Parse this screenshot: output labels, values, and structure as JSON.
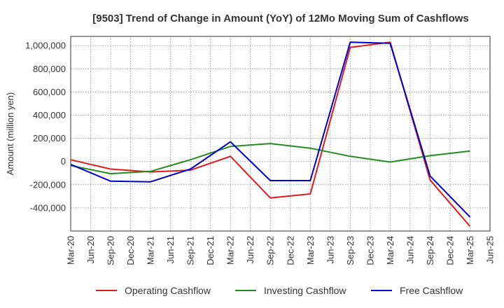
{
  "chart_data": {
    "type": "line",
    "title": "[9503]  Trend of Change in Amount (YoY) of 12Mo Moving Sum of Cashflows",
    "xlabel": "",
    "ylabel": "Amount (million yen)",
    "categories": [
      "Mar-20",
      "Jun-20",
      "Sep-20",
      "Dec-20",
      "Mar-21",
      "Jun-21",
      "Sep-21",
      "Dec-21",
      "Mar-22",
      "Jun-22",
      "Sep-22",
      "Dec-22",
      "Mar-23",
      "Jun-23",
      "Sep-23",
      "Dec-23",
      "Mar-24",
      "Jun-24",
      "Sep-24",
      "Dec-24",
      "Mar-25",
      "Jun-25"
    ],
    "ylim": [
      -600000,
      1080000
    ],
    "yticks": [
      -400000,
      -200000,
      0,
      200000,
      400000,
      600000,
      800000,
      1000000
    ],
    "ytick_labels": [
      "-400,000",
      "-200,000",
      "0",
      "200,000",
      "400,000",
      "600,000",
      "800,000",
      "1,000,000"
    ],
    "grid": true,
    "legend_position": "bottom",
    "series": [
      {
        "name": "Operating Cashflow",
        "color": "#e31a1c",
        "points": [
          {
            "x": "Mar-20",
            "y": 15000
          },
          {
            "x": "Sep-20",
            "y": -65000
          },
          {
            "x": "Mar-21",
            "y": -90000
          },
          {
            "x": "Sep-21",
            "y": -75000
          },
          {
            "x": "Mar-22",
            "y": 45000
          },
          {
            "x": "Sep-22",
            "y": -315000
          },
          {
            "x": "Mar-23",
            "y": -280000
          },
          {
            "x": "Sep-23",
            "y": 985000
          },
          {
            "x": "Mar-24",
            "y": 1030000
          },
          {
            "x": "Sep-24",
            "y": -160000
          },
          {
            "x": "Mar-25",
            "y": -560000
          }
        ]
      },
      {
        "name": "Investing Cashflow",
        "color": "#228b22",
        "points": [
          {
            "x": "Mar-20",
            "y": -35000
          },
          {
            "x": "Sep-20",
            "y": -105000
          },
          {
            "x": "Mar-21",
            "y": -85000
          },
          {
            "x": "Sep-21",
            "y": 15000
          },
          {
            "x": "Mar-22",
            "y": 130000
          },
          {
            "x": "Sep-22",
            "y": 155000
          },
          {
            "x": "Mar-23",
            "y": 115000
          },
          {
            "x": "Sep-23",
            "y": 45000
          },
          {
            "x": "Mar-24",
            "y": -5000
          },
          {
            "x": "Sep-24",
            "y": 50000
          },
          {
            "x": "Mar-25",
            "y": 90000
          }
        ]
      },
      {
        "name": "Free Cashflow",
        "color": "#0000cd",
        "points": [
          {
            "x": "Mar-20",
            "y": -25000
          },
          {
            "x": "Sep-20",
            "y": -170000
          },
          {
            "x": "Mar-21",
            "y": -175000
          },
          {
            "x": "Sep-21",
            "y": -65000
          },
          {
            "x": "Mar-22",
            "y": 170000
          },
          {
            "x": "Sep-22",
            "y": -165000
          },
          {
            "x": "Mar-23",
            "y": -165000
          },
          {
            "x": "Sep-23",
            "y": 1030000
          },
          {
            "x": "Mar-24",
            "y": 1020000
          },
          {
            "x": "Sep-24",
            "y": -125000
          },
          {
            "x": "Mar-25",
            "y": -480000
          }
        ]
      }
    ]
  }
}
